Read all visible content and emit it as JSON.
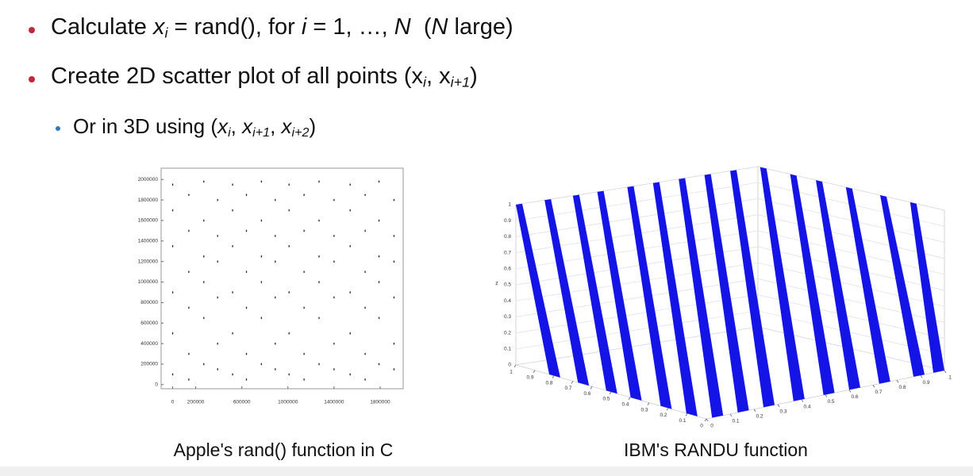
{
  "bullets": [
    [
      "Calculate ",
      "x",
      "i",
      " = rand(), for ",
      "i",
      " = 1, …, ",
      "N",
      "  (",
      "N",
      " large)"
    ],
    [
      "Create 2D scatter plot of all points (x",
      "i",
      ", x",
      "i+1",
      ")"
    ],
    [
      "Or in 3D using (",
      "x",
      "i",
      ", ",
      "x",
      "i+1",
      ", ",
      "x",
      "i+2",
      ")"
    ]
  ],
  "chart_data": [
    {
      "type": "scatter",
      "title": "Apple's rand() function in C",
      "color": "#222222",
      "xlim": [
        -100000,
        2000000
      ],
      "ylim": [
        -40000,
        2110000
      ],
      "xticks": [
        0,
        200000,
        600000,
        1000000,
        1400000,
        1800000
      ],
      "yticks": [
        0,
        200000,
        400000,
        600000,
        800000,
        1000000,
        1200000,
        1400000,
        1600000,
        1800000,
        2000000
      ],
      "x": [
        0,
        0,
        0,
        0,
        0,
        0,
        140000,
        140000,
        140000,
        140000,
        140000,
        140000,
        270000,
        270000,
        270000,
        270000,
        270000,
        270000,
        390000,
        390000,
        390000,
        390000,
        390000,
        390000,
        520000,
        520000,
        520000,
        520000,
        520000,
        520000,
        640000,
        640000,
        640000,
        640000,
        640000,
        640000,
        770000,
        770000,
        770000,
        770000,
        770000,
        770000,
        890000,
        890000,
        890000,
        890000,
        890000,
        890000,
        1010000,
        1010000,
        1010000,
        1010000,
        1010000,
        1010000,
        1140000,
        1140000,
        1140000,
        1140000,
        1140000,
        1140000,
        1270000,
        1270000,
        1270000,
        1270000,
        1270000,
        1270000,
        1400000,
        1400000,
        1400000,
        1400000,
        1400000,
        1400000,
        1540000,
        1540000,
        1540000,
        1540000,
        1540000,
        1540000,
        1670000,
        1670000,
        1670000,
        1670000,
        1670000,
        1670000,
        1790000,
        1790000,
        1790000,
        1790000,
        1790000,
        1790000,
        1920000,
        1920000,
        1920000,
        1920000,
        1920000,
        1920000
      ],
      "y": [
        1950000,
        1700000,
        1350000,
        900000,
        500000,
        100000,
        1850000,
        1500000,
        1100000,
        750000,
        300000,
        50000,
        1980000,
        1600000,
        1250000,
        1000000,
        650000,
        200000,
        1800000,
        1450000,
        1200000,
        850000,
        400000,
        150000,
        1950000,
        1700000,
        1350000,
        900000,
        500000,
        100000,
        1850000,
        1500000,
        1100000,
        750000,
        300000,
        50000,
        1980000,
        1600000,
        1250000,
        1000000,
        650000,
        200000,
        1800000,
        1450000,
        1200000,
        850000,
        400000,
        150000,
        1950000,
        1700000,
        1350000,
        900000,
        500000,
        100000,
        1850000,
        1500000,
        1100000,
        750000,
        300000,
        50000,
        1980000,
        1600000,
        1250000,
        1000000,
        650000,
        200000,
        1800000,
        1450000,
        1200000,
        850000,
        400000,
        150000,
        1950000,
        1700000,
        1350000,
        900000,
        500000,
        100000,
        1850000,
        1500000,
        1100000,
        750000,
        300000,
        50000,
        1980000,
        1600000,
        1250000,
        1000000,
        650000,
        200000,
        1800000,
        1450000,
        1200000,
        850000,
        400000,
        150000
      ]
    },
    {
      "type": "planes3d",
      "title": "IBM's RANDU function",
      "color": "#1414e6",
      "zlabel": "z",
      "zlim": [
        0,
        1
      ],
      "zticks": [
        0,
        0.1,
        0.2,
        0.3,
        0.4,
        0.5,
        0.6,
        0.7,
        0.8,
        0.9,
        1
      ],
      "xlim": [
        0,
        1
      ],
      "xticks": [
        0,
        0.1,
        0.2,
        0.3,
        0.4,
        0.5,
        0.6,
        0.7,
        0.8,
        0.9,
        1
      ],
      "ylim": [
        0,
        1
      ],
      "yticks": [
        0,
        0.1,
        0.2,
        0.3,
        0.4,
        0.5,
        0.6,
        0.7,
        0.8,
        0.9,
        1
      ],
      "planes": [
        0,
        0.067,
        0.133,
        0.19,
        0.26,
        0.32,
        0.38,
        0.44,
        0.5,
        0.57,
        0.64,
        0.7,
        0.77,
        0.85,
        0.92
      ]
    }
  ]
}
